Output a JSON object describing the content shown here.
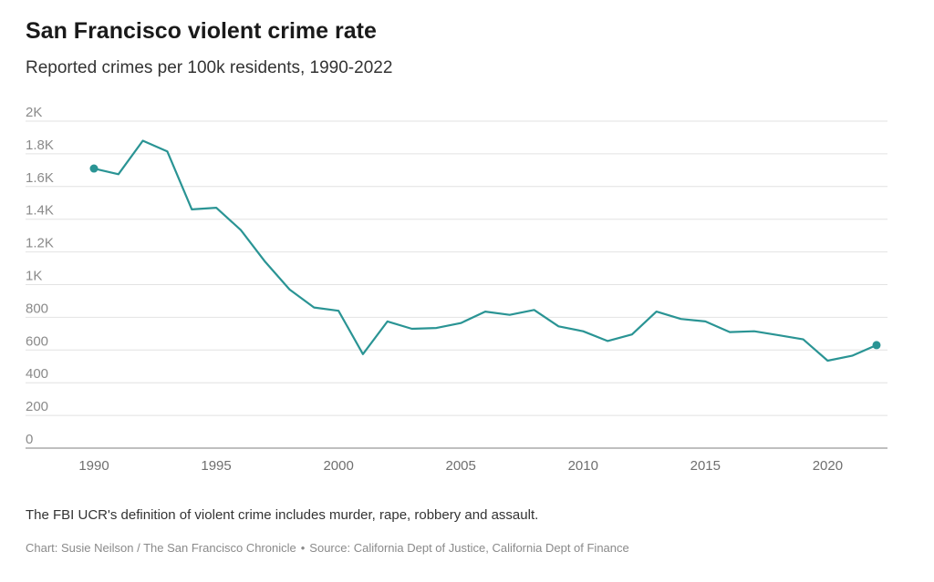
{
  "header": {
    "title": "San Francisco violent crime rate",
    "subtitle": "Reported crimes per 100k residents, 1990-2022"
  },
  "footer": {
    "note": "The FBI UCR's definition of violent crime includes murder, rape, robbery and assault.",
    "credit": "Chart: Susie Neilson / The San Francisco Chronicle",
    "separator": "•",
    "source": "Source: California Dept of Justice, California Dept of Finance"
  },
  "chart_data": {
    "type": "line",
    "title": "San Francisco violent crime rate",
    "subtitle": "Reported crimes per 100k residents, 1990-2022",
    "xlabel": "",
    "ylabel": "",
    "xlim": [
      1990,
      2022
    ],
    "ylim": [
      0,
      2000
    ],
    "x_ticks": [
      1990,
      1995,
      2000,
      2005,
      2010,
      2015,
      2020
    ],
    "x_tick_labels": [
      "1990",
      "1995",
      "2000",
      "2005",
      "2010",
      "2015",
      "2020"
    ],
    "y_ticks": [
      0,
      200,
      400,
      600,
      800,
      1000,
      1200,
      1400,
      1600,
      1800,
      2000
    ],
    "y_tick_labels": [
      "0",
      "200",
      "400",
      "600",
      "800",
      "1K",
      "1.2K",
      "1.4K",
      "1.6K",
      "1.8K",
      "2K"
    ],
    "grid": true,
    "color": "#2a9494",
    "x": [
      1990,
      1991,
      1992,
      1993,
      1994,
      1995,
      1996,
      1997,
      1998,
      1999,
      2000,
      2001,
      2002,
      2003,
      2004,
      2005,
      2006,
      2007,
      2008,
      2009,
      2010,
      2011,
      2012,
      2013,
      2014,
      2015,
      2016,
      2017,
      2018,
      2019,
      2020,
      2021,
      2022
    ],
    "values": [
      1710,
      1675,
      1880,
      1815,
      1460,
      1470,
      1335,
      1140,
      970,
      860,
      840,
      575,
      775,
      730,
      735,
      765,
      835,
      815,
      845,
      745,
      715,
      655,
      695,
      835,
      790,
      775,
      710,
      715,
      690,
      665,
      535,
      565,
      630
    ]
  }
}
